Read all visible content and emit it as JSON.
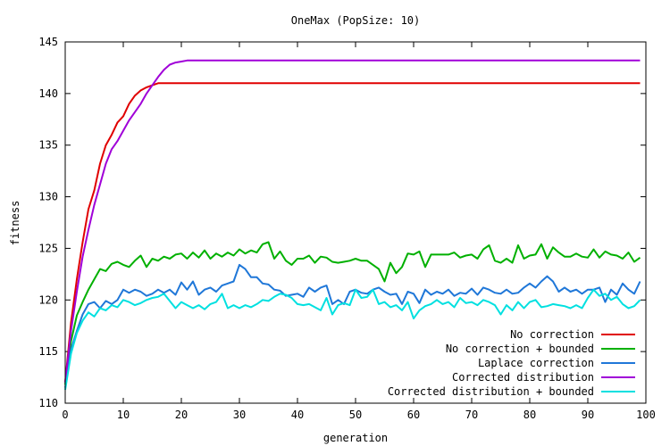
{
  "chart_data": {
    "type": "line",
    "title": "OneMax (PopSize: 10)",
    "xlabel": "generation",
    "ylabel": "fitness",
    "xlim": [
      0,
      100
    ],
    "ylim": [
      110,
      145
    ],
    "xticks": [
      0,
      10,
      20,
      30,
      40,
      50,
      60,
      70,
      80,
      90,
      100
    ],
    "yticks": [
      110,
      115,
      120,
      125,
      130,
      135,
      140,
      145
    ],
    "grid": false,
    "legend_position": "bottom-right",
    "series": [
      {
        "name": "No correction",
        "color": "#e00000",
        "x": [
          0,
          1,
          2,
          3,
          4,
          5,
          6,
          7,
          8,
          9,
          10,
          11,
          12,
          13,
          14,
          15,
          16,
          17,
          18,
          19,
          20,
          30,
          40,
          50,
          60,
          70,
          80,
          90,
          99
        ],
        "y": [
          112.0,
          117.8,
          122.0,
          125.6,
          128.8,
          130.6,
          133.2,
          135.0,
          136.0,
          137.2,
          137.8,
          139.0,
          139.8,
          140.3,
          140.6,
          140.8,
          141.0,
          141.0,
          141.0,
          141.0,
          141.0,
          141.0,
          141.0,
          141.0,
          141.0,
          141.0,
          141.0,
          141.0,
          141.0
        ]
      },
      {
        "name": "No correction + bounded",
        "color": "#00b000",
        "x": [
          0,
          1,
          2,
          3,
          4,
          5,
          6,
          7,
          8,
          9,
          10,
          11,
          12,
          13,
          14,
          15,
          16,
          17,
          18,
          19,
          20,
          21,
          22,
          23,
          24,
          25,
          26,
          27,
          28,
          29,
          30,
          31,
          32,
          33,
          34,
          35,
          36,
          37,
          38,
          39,
          40,
          41,
          42,
          43,
          44,
          45,
          46,
          47,
          48,
          49,
          50,
          51,
          52,
          53,
          54,
          55,
          56,
          57,
          58,
          59,
          60,
          61,
          62,
          63,
          64,
          65,
          66,
          67,
          68,
          69,
          70,
          71,
          72,
          73,
          74,
          75,
          76,
          77,
          78,
          79,
          80,
          81,
          82,
          83,
          84,
          85,
          86,
          87,
          88,
          89,
          90,
          91,
          92,
          93,
          94,
          95,
          96,
          97,
          98,
          99
        ],
        "y": [
          111.8,
          116.0,
          118.5,
          119.8,
          121.0,
          122.0,
          123.0,
          122.8,
          123.5,
          123.7,
          123.4,
          123.2,
          123.8,
          124.3,
          123.2,
          124.0,
          123.8,
          124.2,
          124.0,
          124.4,
          124.5,
          124.0,
          124.6,
          124.1,
          124.8,
          124.0,
          124.5,
          124.2,
          124.6,
          124.3,
          124.9,
          124.5,
          124.8,
          124.6,
          125.4,
          125.6,
          124.0,
          124.7,
          123.8,
          123.4,
          124.0,
          124.0,
          124.3,
          123.6,
          124.2,
          124.1,
          123.7,
          123.6,
          123.7,
          123.8,
          124.0,
          123.8,
          123.8,
          123.4,
          123.0,
          121.8,
          123.6,
          122.6,
          123.2,
          124.5,
          124.4,
          124.7,
          123.2,
          124.4,
          124.4,
          124.4,
          124.4,
          124.6,
          124.1,
          124.3,
          124.4,
          124.0,
          124.9,
          125.3,
          123.8,
          123.6,
          124.0,
          123.6,
          125.3,
          124.0,
          124.3,
          124.4,
          125.4,
          124.0,
          125.1,
          124.6,
          124.2,
          124.2,
          124.5,
          124.2,
          124.1,
          124.9,
          124.1,
          124.7,
          124.4,
          124.3,
          124.0,
          124.6,
          123.7,
          124.1
        ]
      },
      {
        "name": "Laplace correction",
        "color": "#1f77d8",
        "x": [
          0,
          1,
          2,
          3,
          4,
          5,
          6,
          7,
          8,
          9,
          10,
          11,
          12,
          13,
          14,
          15,
          16,
          17,
          18,
          19,
          20,
          21,
          22,
          23,
          24,
          25,
          26,
          27,
          28,
          29,
          30,
          31,
          32,
          33,
          34,
          35,
          36,
          37,
          38,
          39,
          40,
          41,
          42,
          43,
          44,
          45,
          46,
          47,
          48,
          49,
          50,
          51,
          52,
          53,
          54,
          55,
          56,
          57,
          58,
          59,
          60,
          61,
          62,
          63,
          64,
          65,
          66,
          67,
          68,
          69,
          70,
          71,
          72,
          73,
          74,
          75,
          76,
          77,
          78,
          79,
          80,
          81,
          82,
          83,
          84,
          85,
          86,
          87,
          88,
          89,
          90,
          91,
          92,
          93,
          94,
          95,
          96,
          97,
          98,
          99
        ],
        "y": [
          111.5,
          115.2,
          117.0,
          118.6,
          119.6,
          119.8,
          119.2,
          119.9,
          119.6,
          120.0,
          121.0,
          120.7,
          121.0,
          120.8,
          120.4,
          120.6,
          121.0,
          120.7,
          121.0,
          120.5,
          121.7,
          121.0,
          121.8,
          120.5,
          121.0,
          121.2,
          120.8,
          121.4,
          121.6,
          121.8,
          123.4,
          123.0,
          122.2,
          122.2,
          121.6,
          121.5,
          121.0,
          120.9,
          120.4,
          120.5,
          120.6,
          120.3,
          121.2,
          120.8,
          121.2,
          121.4,
          119.6,
          120.0,
          119.6,
          120.8,
          121.0,
          120.7,
          120.6,
          121.0,
          121.2,
          120.8,
          120.5,
          120.6,
          119.6,
          120.8,
          120.6,
          119.7,
          121.0,
          120.5,
          120.8,
          120.6,
          121.0,
          120.4,
          120.7,
          120.6,
          121.1,
          120.5,
          121.2,
          121.0,
          120.7,
          120.6,
          121.0,
          120.6,
          120.7,
          121.2,
          121.6,
          121.2,
          121.8,
          122.3,
          121.8,
          120.8,
          121.2,
          120.8,
          121.0,
          120.6,
          121.0,
          121.0,
          121.2,
          119.8,
          121.0,
          120.5,
          121.6,
          121.0,
          120.6,
          121.8
        ]
      },
      {
        "name": "Corrected distribution",
        "color": "#a000d8",
        "x": [
          0,
          1,
          2,
          3,
          4,
          5,
          6,
          7,
          8,
          9,
          10,
          11,
          12,
          13,
          14,
          15,
          16,
          17,
          18,
          19,
          20,
          21,
          22,
          30,
          40,
          50,
          60,
          70,
          80,
          90,
          99
        ],
        "y": [
          112.0,
          117.0,
          120.8,
          124.2,
          126.8,
          129.2,
          131.2,
          133.2,
          134.6,
          135.4,
          136.4,
          137.4,
          138.2,
          139.0,
          140.0,
          140.8,
          141.6,
          142.3,
          142.8,
          143.0,
          143.1,
          143.2,
          143.2,
          143.2,
          143.2,
          143.2,
          143.2,
          143.2,
          143.2,
          143.2,
          143.2
        ]
      },
      {
        "name": "Corrected distribution + bounded",
        "color": "#00e0e0",
        "x": [
          0,
          1,
          2,
          3,
          4,
          5,
          6,
          7,
          8,
          9,
          10,
          11,
          12,
          13,
          14,
          15,
          16,
          17,
          18,
          19,
          20,
          21,
          22,
          23,
          24,
          25,
          26,
          27,
          28,
          29,
          30,
          31,
          32,
          33,
          34,
          35,
          36,
          37,
          38,
          39,
          40,
          41,
          42,
          43,
          44,
          45,
          46,
          47,
          48,
          49,
          50,
          51,
          52,
          53,
          54,
          55,
          56,
          57,
          58,
          59,
          60,
          61,
          62,
          63,
          64,
          65,
          66,
          67,
          68,
          69,
          70,
          71,
          72,
          73,
          74,
          75,
          76,
          77,
          78,
          79,
          80,
          81,
          82,
          83,
          84,
          85,
          86,
          87,
          88,
          89,
          90,
          91,
          92,
          93,
          94,
          95,
          96,
          97,
          98,
          99
        ],
        "y": [
          111.3,
          114.8,
          116.8,
          118.0,
          118.8,
          118.4,
          119.2,
          119.0,
          119.5,
          119.3,
          120.0,
          119.8,
          119.5,
          119.7,
          120.0,
          120.2,
          120.3,
          120.6,
          119.9,
          119.2,
          119.8,
          119.5,
          119.2,
          119.5,
          119.1,
          119.6,
          119.8,
          120.6,
          119.2,
          119.5,
          119.2,
          119.5,
          119.3,
          119.6,
          120.0,
          119.9,
          120.3,
          120.6,
          120.5,
          120.2,
          119.6,
          119.5,
          119.6,
          119.3,
          119.0,
          120.2,
          118.6,
          119.5,
          119.7,
          119.5,
          121.0,
          120.2,
          120.3,
          121.0,
          119.6,
          119.8,
          119.3,
          119.5,
          119.0,
          119.8,
          118.2,
          119.0,
          119.4,
          119.6,
          120.0,
          119.6,
          119.8,
          119.3,
          120.2,
          119.7,
          119.8,
          119.5,
          120.0,
          119.8,
          119.5,
          118.6,
          119.5,
          119.0,
          119.8,
          119.2,
          119.8,
          120.0,
          119.3,
          119.4,
          119.6,
          119.5,
          119.4,
          119.2,
          119.5,
          119.2,
          120.2,
          121.0,
          120.4,
          120.6,
          120.0,
          120.3,
          119.6,
          119.2,
          119.4,
          120.0
        ]
      }
    ]
  }
}
